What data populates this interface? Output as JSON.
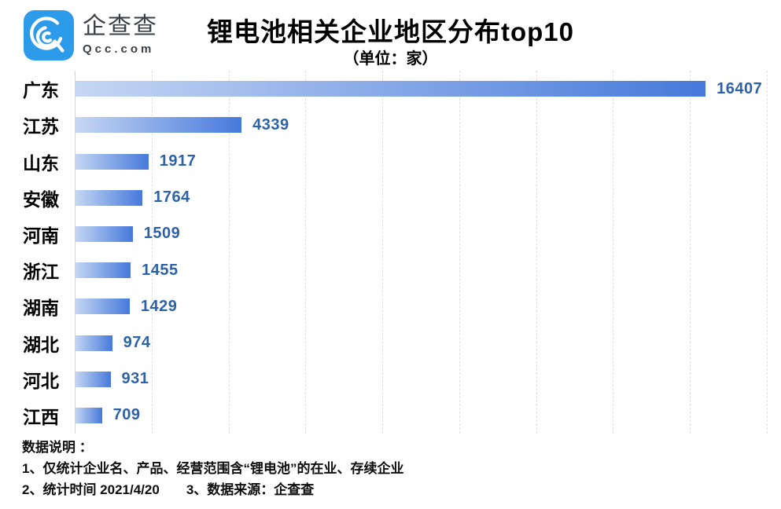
{
  "header": {
    "logo": {
      "name": "企查查",
      "domain": "Qcc.com",
      "icon": "qcc-logo-icon",
      "badge_color": "#2b9bea",
      "text_color": "#3a4047"
    },
    "title": "锂电池相关企业地区分布top10",
    "subtitle": "（单位：家）"
  },
  "chart_data": {
    "type": "bar",
    "orientation": "horizontal",
    "title": "锂电池相关企业地区分布top10",
    "subtitle": "（单位：家）",
    "unit": "家",
    "categories": [
      "广东",
      "江苏",
      "山东",
      "安徽",
      "河南",
      "浙江",
      "湖南",
      "湖北",
      "河北",
      "江西"
    ],
    "values": [
      16407,
      4339,
      1917,
      1764,
      1509,
      1455,
      1429,
      974,
      931,
      709
    ],
    "xlim": [
      0,
      18000
    ],
    "grid_interval": 2000,
    "grid": true,
    "legend": false,
    "bar_gradient_start": "#c6d7f3",
    "bar_gradient_end": "#4679db",
    "value_label_color": "#2e62a8",
    "category_label_color": "#000000"
  },
  "footer": {
    "heading": "数据说明 ：",
    "line1": "1、仅统计企业名、产品、经营范围含“锂电池”的在业、存续企业",
    "line2_part1": "2、统计时间 2021/4/20",
    "line2_part2": "3、数据来源：企查查"
  }
}
